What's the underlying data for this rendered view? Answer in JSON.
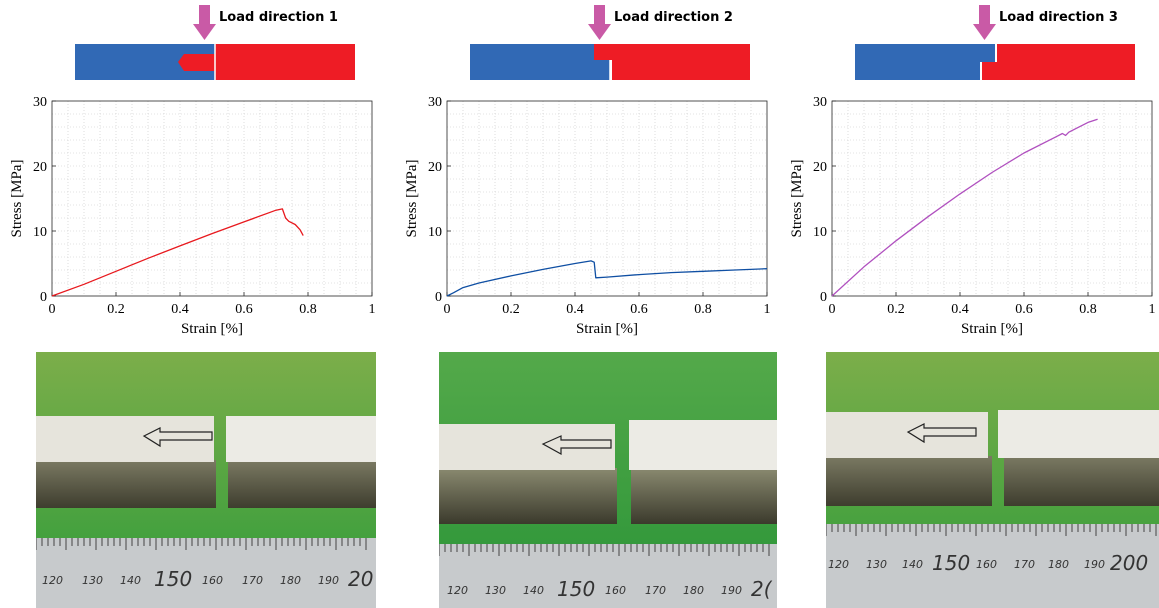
{
  "colors": {
    "blue_part": "#3169b5",
    "red_part": "#ee1c25",
    "arrow": "#c95aa6",
    "series_1": "#e8191e",
    "series_2": "#0f4fa3",
    "series_3": "#b050bf",
    "grass": "#2f9c3a"
  },
  "chart_data": [
    {
      "type": "line",
      "title": "",
      "load_label": "Load direction 1",
      "xlabel": "Strain [%]",
      "ylabel": "Stress [MPa]",
      "xlim": [
        0,
        1
      ],
      "ylim": [
        0,
        30
      ],
      "xticks": [
        "0",
        "0.2",
        "0.4",
        "0.6",
        "0.8",
        "1"
      ],
      "yticks": [
        "0",
        "10",
        "20",
        "30"
      ],
      "grid": true,
      "series": [
        {
          "x": [
            0,
            0.1,
            0.2,
            0.3,
            0.4,
            0.5,
            0.6,
            0.7,
            0.72,
            0.73,
            0.74,
            0.76,
            0.775,
            0.785
          ],
          "y": [
            0,
            1.8,
            3.8,
            5.8,
            7.7,
            9.6,
            11.4,
            13.2,
            13.4,
            12.0,
            11.5,
            11.0,
            10.2,
            9.3
          ]
        }
      ]
    },
    {
      "type": "line",
      "title": "",
      "load_label": "Load direction 2",
      "xlabel": "Strain [%]",
      "ylabel": "Stress [MPa]",
      "xlim": [
        0,
        1
      ],
      "ylim": [
        0,
        30
      ],
      "xticks": [
        "0",
        "0.2",
        "0.4",
        "0.6",
        "0.8",
        "1"
      ],
      "yticks": [
        "0",
        "10",
        "20",
        "30"
      ],
      "grid": true,
      "series": [
        {
          "x": [
            0,
            0.02,
            0.05,
            0.1,
            0.2,
            0.3,
            0.4,
            0.45,
            0.46,
            0.465,
            0.5,
            0.6,
            0.7,
            0.8,
            0.9,
            1.0
          ],
          "y": [
            0,
            0.5,
            1.3,
            2.0,
            3.1,
            4.1,
            5.0,
            5.4,
            5.2,
            2.8,
            2.9,
            3.3,
            3.6,
            3.8,
            4.0,
            4.2
          ]
        }
      ]
    },
    {
      "type": "line",
      "title": "",
      "load_label": "Load direction 3",
      "xlabel": "Strain [%]",
      "ylabel": "Stress [MPa]",
      "xlim": [
        0,
        1
      ],
      "ylim": [
        0,
        30
      ],
      "xticks": [
        "0",
        "0.2",
        "0.4",
        "0.6",
        "0.8",
        "1"
      ],
      "yticks": [
        "0",
        "10",
        "20",
        "30"
      ],
      "grid": true,
      "series": [
        {
          "x": [
            0,
            0.1,
            0.2,
            0.3,
            0.4,
            0.5,
            0.6,
            0.7,
            0.72,
            0.73,
            0.74,
            0.8,
            0.83
          ],
          "y": [
            0,
            4.5,
            8.5,
            12.2,
            15.7,
            19.0,
            22.0,
            24.5,
            25.0,
            24.7,
            25.2,
            26.7,
            27.2
          ]
        }
      ]
    }
  ],
  "photos": [
    {
      "ruler_labels": [
        "120",
        "130",
        "140",
        "150",
        "160",
        "170",
        "180",
        "190",
        "20"
      ]
    },
    {
      "ruler_labels": [
        "120",
        "130",
        "140",
        "150",
        "160",
        "170",
        "180",
        "190",
        "2("
      ]
    },
    {
      "ruler_labels": [
        "120",
        "130",
        "140",
        "150",
        "160",
        "170",
        "180",
        "190",
        "200"
      ]
    }
  ]
}
